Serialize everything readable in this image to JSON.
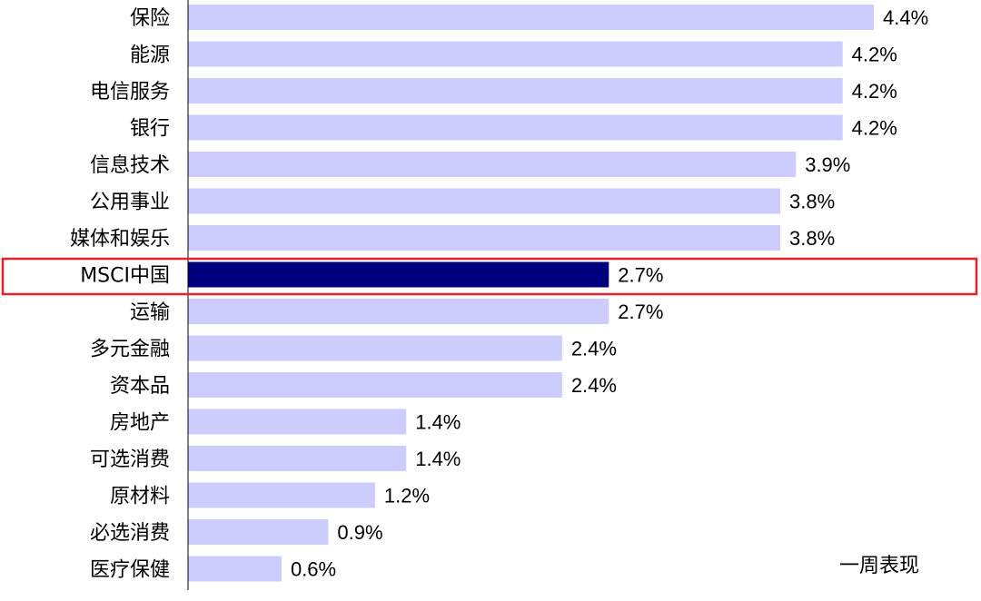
{
  "chart_data": {
    "type": "bar",
    "orientation": "horizontal",
    "categories": [
      "保险",
      "能源",
      "电信服务",
      "银行",
      "信息技术",
      "公用事业",
      "媒体和娱乐",
      "MSCI中国",
      "运输",
      "多元金融",
      "资本品",
      "房地产",
      "可选消费",
      "原材料",
      "必选消费",
      "医疗保健"
    ],
    "series": [
      {
        "name": "一周表现",
        "values": [
          4.4,
          4.2,
          4.2,
          4.2,
          3.9,
          3.8,
          3.8,
          2.7,
          2.7,
          2.4,
          2.4,
          1.4,
          1.4,
          1.2,
          0.9,
          0.6
        ]
      }
    ],
    "value_labels": [
      "4.4%",
      "4.2%",
      "4.2%",
      "4.2%",
      "3.9%",
      "3.8%",
      "3.8%",
      "2.7%",
      "2.7%",
      "2.4%",
      "2.4%",
      "1.4%",
      "1.4%",
      "1.2%",
      "0.9%",
      "0.6%"
    ],
    "highlight_category": "MSCI中国",
    "legend_text": "一周表现",
    "legend_position": "bottom-right",
    "xlim": [
      0,
      4.4
    ],
    "grid": false,
    "colors": {
      "bar": "#ccccff",
      "highlight_bar": "#00007f",
      "highlight_box": "#e8202a",
      "axis": "#000000"
    }
  }
}
